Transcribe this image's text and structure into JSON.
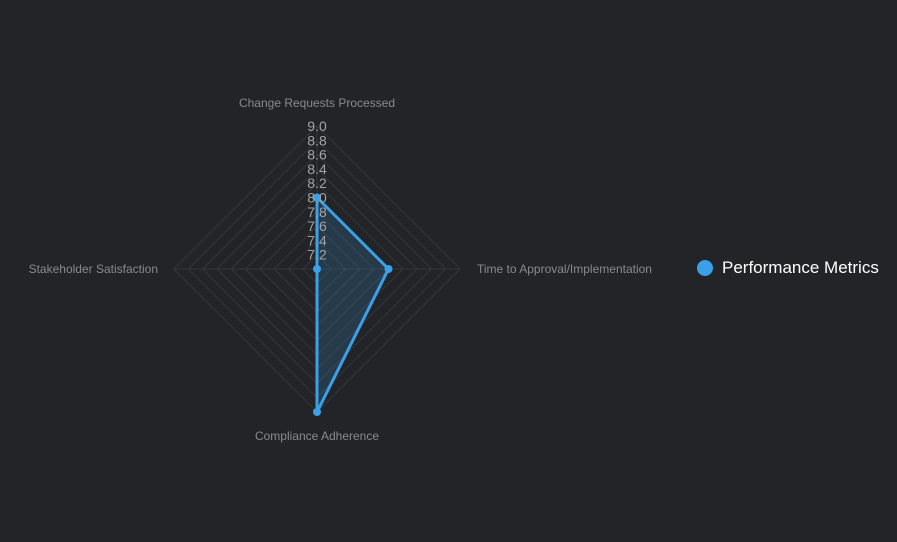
{
  "colors": {
    "series": "#3aa0e8",
    "series_fill": "rgba(58,160,232,0.18)",
    "grid": "#34363a",
    "tick_text": "#a4a4a6",
    "axis_text": "#8a8a8c"
  },
  "chart_data": {
    "type": "radar",
    "axes": [
      "Change Requests Processed",
      "Time to Approval/Implementation",
      "Compliance Adherence",
      "Stakeholder Satisfaction"
    ],
    "ticks": [
      "7.2",
      "7.4",
      "7.6",
      "7.8",
      "8.0",
      "8.2",
      "8.4",
      "8.6",
      "8.8",
      "9.0"
    ],
    "range": [
      7.0,
      9.0
    ],
    "grid": true,
    "legend_position": "right",
    "series": [
      {
        "name": "Performance Metrics",
        "values": [
          8.0,
          8.0,
          9.0,
          7.0
        ]
      }
    ]
  },
  "legend": {
    "label": "Performance Metrics"
  }
}
